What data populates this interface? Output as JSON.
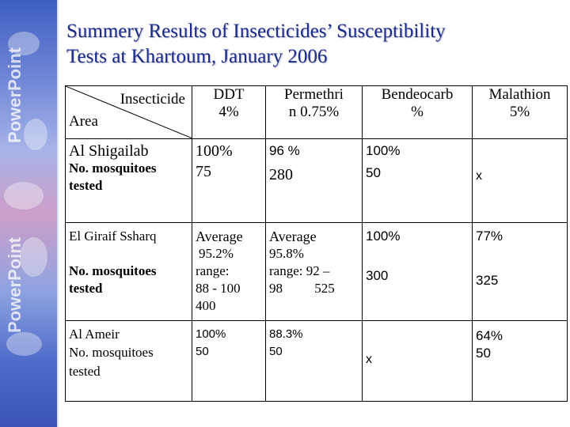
{
  "brand": {
    "side_text_1": "PowerPoint",
    "side_text_2": "PowerPoint"
  },
  "title": {
    "line1": "Summery Results of Insecticides’ Susceptibility",
    "line2": "Tests at Khartoum, January 2006"
  },
  "table": {
    "header": {
      "corner_top": "Insecticide",
      "corner_bottom": "Area",
      "col1_line1": "DDT",
      "col1_line2": "4%",
      "col2_line1": "Permethri",
      "col2_line2": "n 0.75%",
      "col3_line1": "Bendeocarb",
      "col3_line2": "%",
      "col4_line1": "Malathion",
      "col4_line2": "5%"
    },
    "rows": [
      {
        "area": "Al Shigailab",
        "sublabel": "No. mosquitoes tested",
        "ddt_pct": "100%",
        "ddt_n": "75",
        "perm_pct": "96 %",
        "perm_n": "280",
        "bend_pct": "100%",
        "bend_n": "50",
        "mala": "x"
      },
      {
        "area": "El Giraif Ssharq",
        "sublabel": "No. mosquitoes tested",
        "ddt_l1": "Average",
        "ddt_l2": "95.2%",
        "ddt_l3": "range:",
        "ddt_l4": "88 - 100",
        "ddt_l5": "400",
        "perm_l1": "Average",
        "perm_l2": "95.8%",
        "perm_l3": "range: 92 –",
        "perm_l4a": "98",
        "perm_l4b": "525",
        "bend_pct": "100%",
        "bend_n": "300",
        "mala_pct": "77%",
        "mala_n": "325"
      },
      {
        "area": "Al Ameir",
        "sublabel": "No. mosquitoes tested",
        "ddt_pct": "100%",
        "ddt_n": "50",
        "perm_pct": "88.3%",
        "perm_n": "50",
        "bend": "x",
        "mala_pct": "64%",
        "mala_n": "50"
      }
    ]
  }
}
